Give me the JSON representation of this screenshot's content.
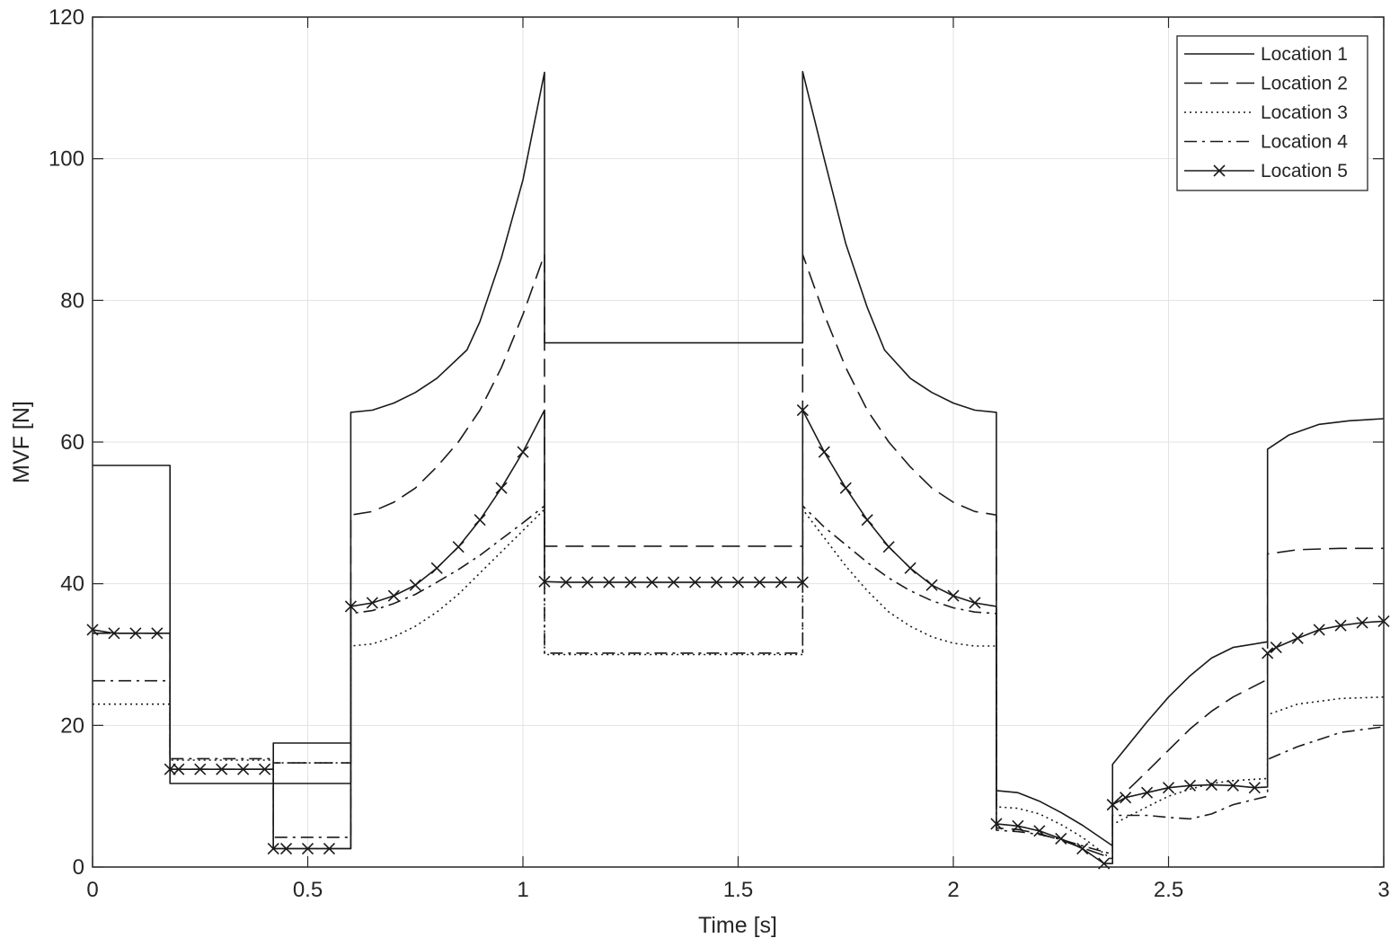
{
  "chart_data": {
    "type": "line",
    "title": "",
    "xlabel": "Time [s]",
    "ylabel": "MVF [N]",
    "xlim": [
      0,
      3
    ],
    "ylim": [
      0,
      120
    ],
    "xticks": [
      0,
      0.5,
      1,
      1.5,
      2,
      2.5,
      3
    ],
    "xtick_labels": [
      "0",
      "0.5",
      "1",
      "1.5",
      "2",
      "2.5",
      "3"
    ],
    "yticks": [
      0,
      20,
      40,
      60,
      80,
      100,
      120
    ],
    "ytick_labels": [
      "0",
      "20",
      "40",
      "60",
      "80",
      "100",
      "120"
    ],
    "grid": true,
    "legend_position": "top-right",
    "series": [
      {
        "name": "Location 1",
        "style": "solid",
        "marker": "none",
        "points": [
          [
            0,
            56.7
          ],
          [
            0.18,
            56.7
          ],
          [
            0.18,
            11.8
          ],
          [
            0.42,
            11.8
          ],
          [
            0.42,
            17.5
          ],
          [
            0.6,
            17.5
          ],
          [
            0.6,
            2.6
          ],
          [
            0.42,
            2.6
          ],
          [
            0.42,
            11.8
          ],
          [
            0.6,
            11.8
          ],
          [
            0.6,
            64.2
          ],
          [
            0.65,
            64.5
          ],
          [
            0.7,
            65.5
          ],
          [
            0.75,
            67
          ],
          [
            0.8,
            69
          ],
          [
            0.87,
            73
          ],
          [
            0.9,
            77
          ],
          [
            0.95,
            86
          ],
          [
            1.0,
            97
          ],
          [
            1.05,
            112.2
          ],
          [
            1.05,
            74
          ],
          [
            1.65,
            74
          ],
          [
            1.65,
            112.3
          ],
          [
            1.7,
            100
          ],
          [
            1.75,
            88
          ],
          [
            1.8,
            79
          ],
          [
            1.84,
            73
          ],
          [
            1.9,
            69
          ],
          [
            1.95,
            67
          ],
          [
            2.0,
            65.5
          ],
          [
            2.05,
            64.5
          ],
          [
            2.1,
            64.2
          ],
          [
            2.1,
            10.8
          ],
          [
            2.15,
            10.5
          ],
          [
            2.2,
            9.3
          ],
          [
            2.25,
            7.7
          ],
          [
            2.3,
            5.9
          ],
          [
            2.37,
            3.0
          ],
          [
            2.37,
            14.5
          ],
          [
            2.45,
            20.5
          ],
          [
            2.5,
            24
          ],
          [
            2.55,
            27
          ],
          [
            2.6,
            29.5
          ],
          [
            2.65,
            31
          ],
          [
            2.73,
            31.8
          ],
          [
            2.73,
            59
          ],
          [
            2.78,
            61
          ],
          [
            2.85,
            62.5
          ],
          [
            2.92,
            63
          ],
          [
            3.0,
            63.3
          ]
        ]
      },
      {
        "name": "Location 2",
        "style": "dashed",
        "marker": "none",
        "points": [
          [
            0,
            33
          ],
          [
            0.18,
            33
          ],
          [
            0.18,
            13.8
          ],
          [
            0.42,
            13.8
          ],
          [
            0.42,
            14.7
          ],
          [
            0.6,
            14.7
          ],
          [
            0.6,
            49.7
          ],
          [
            0.65,
            50.2
          ],
          [
            0.7,
            51.5
          ],
          [
            0.75,
            53.5
          ],
          [
            0.8,
            56.5
          ],
          [
            0.85,
            60
          ],
          [
            0.9,
            64.5
          ],
          [
            0.95,
            70.5
          ],
          [
            1.0,
            78
          ],
          [
            1.05,
            86.5
          ],
          [
            1.05,
            45.3
          ],
          [
            1.65,
            45.3
          ],
          [
            1.65,
            86.5
          ],
          [
            1.7,
            78
          ],
          [
            1.75,
            70.5
          ],
          [
            1.8,
            64.5
          ],
          [
            1.85,
            60
          ],
          [
            1.9,
            56.5
          ],
          [
            1.95,
            53.5
          ],
          [
            2.0,
            51.5
          ],
          [
            2.05,
            50.2
          ],
          [
            2.1,
            49.7
          ],
          [
            2.1,
            5.5
          ],
          [
            2.15,
            5.3
          ],
          [
            2.2,
            4.7
          ],
          [
            2.25,
            3.8
          ],
          [
            2.3,
            2.7
          ],
          [
            2.37,
            1.2
          ],
          [
            2.37,
            8.8
          ],
          [
            2.45,
            13.5
          ],
          [
            2.5,
            16.5
          ],
          [
            2.55,
            19.5
          ],
          [
            2.6,
            22
          ],
          [
            2.65,
            24
          ],
          [
            2.73,
            26.5
          ],
          [
            2.73,
            44.2
          ],
          [
            2.8,
            44.8
          ],
          [
            2.9,
            45
          ],
          [
            3.0,
            45
          ]
        ]
      },
      {
        "name": "Location 3",
        "style": "dotted",
        "marker": "none",
        "points": [
          [
            0,
            23
          ],
          [
            0.18,
            23
          ],
          [
            0.18,
            15.1
          ],
          [
            0.42,
            15.1
          ],
          [
            0.42,
            14.7
          ],
          [
            0.6,
            14.7
          ],
          [
            0.6,
            31.2
          ],
          [
            0.65,
            31.5
          ],
          [
            0.7,
            32.5
          ],
          [
            0.75,
            34
          ],
          [
            0.8,
            36
          ],
          [
            0.85,
            38.5
          ],
          [
            0.9,
            41.5
          ],
          [
            0.95,
            44.5
          ],
          [
            1.0,
            47.5
          ],
          [
            1.05,
            50.5
          ],
          [
            1.05,
            30
          ],
          [
            1.65,
            30
          ],
          [
            1.65,
            50.5
          ],
          [
            1.7,
            46.5
          ],
          [
            1.75,
            42.5
          ],
          [
            1.8,
            39
          ],
          [
            1.85,
            36
          ],
          [
            1.9,
            34
          ],
          [
            1.95,
            32.5
          ],
          [
            2.0,
            31.6
          ],
          [
            2.05,
            31.2
          ],
          [
            2.1,
            31.2
          ],
          [
            2.1,
            8.5
          ],
          [
            2.15,
            8.3
          ],
          [
            2.2,
            7.5
          ],
          [
            2.25,
            6.0
          ],
          [
            2.3,
            4.2
          ],
          [
            2.37,
            1.0
          ],
          [
            2.37,
            6.0
          ],
          [
            2.45,
            8.5
          ],
          [
            2.5,
            10.0
          ],
          [
            2.55,
            11.0
          ],
          [
            2.6,
            11.8
          ],
          [
            2.65,
            12.2
          ],
          [
            2.73,
            12.5
          ],
          [
            2.73,
            21.5
          ],
          [
            2.8,
            23.0
          ],
          [
            2.9,
            23.8
          ],
          [
            3.0,
            24
          ]
        ]
      },
      {
        "name": "Location 4",
        "style": "dashdot",
        "marker": "none",
        "points": [
          [
            0,
            26.3
          ],
          [
            0.18,
            26.3
          ],
          [
            0.18,
            15.3
          ],
          [
            0.42,
            15.3
          ],
          [
            0.42,
            4.2
          ],
          [
            0.6,
            4.2
          ],
          [
            0.6,
            35.8
          ],
          [
            0.65,
            36.2
          ],
          [
            0.7,
            37.2
          ],
          [
            0.75,
            38.5
          ],
          [
            0.8,
            40.2
          ],
          [
            0.85,
            42
          ],
          [
            0.9,
            44
          ],
          [
            0.95,
            46.3
          ],
          [
            1.0,
            48.6
          ],
          [
            1.05,
            51
          ],
          [
            1.05,
            30.2
          ],
          [
            1.65,
            30.2
          ],
          [
            1.65,
            51
          ],
          [
            1.7,
            48
          ],
          [
            1.75,
            45.5
          ],
          [
            1.8,
            43
          ],
          [
            1.85,
            40.8
          ],
          [
            1.9,
            39
          ],
          [
            1.95,
            37.6
          ],
          [
            2.0,
            36.6
          ],
          [
            2.05,
            36
          ],
          [
            2.1,
            35.8
          ],
          [
            2.1,
            5.2
          ],
          [
            2.15,
            5.0
          ],
          [
            2.2,
            4.6
          ],
          [
            2.25,
            3.9
          ],
          [
            2.3,
            3.0
          ],
          [
            2.37,
            1.8
          ],
          [
            2.37,
            7.3
          ],
          [
            2.45,
            7.3
          ],
          [
            2.5,
            7.0
          ],
          [
            2.55,
            6.8
          ],
          [
            2.6,
            7.5
          ],
          [
            2.65,
            8.8
          ],
          [
            2.73,
            10.0
          ],
          [
            2.73,
            15.2
          ],
          [
            2.8,
            17.0
          ],
          [
            2.9,
            19.0
          ],
          [
            3.0,
            19.8
          ]
        ]
      },
      {
        "name": "Location 5",
        "style": "solid",
        "marker": "x",
        "points": [
          [
            0,
            33.5
          ],
          [
            0.05,
            33
          ],
          [
            0.1,
            33
          ],
          [
            0.15,
            33
          ],
          [
            0.18,
            33
          ],
          [
            0.18,
            13.8
          ],
          [
            0.2,
            13.8
          ],
          [
            0.25,
            13.8
          ],
          [
            0.3,
            13.8
          ],
          [
            0.35,
            13.8
          ],
          [
            0.4,
            13.8
          ],
          [
            0.42,
            13.8
          ],
          [
            0.42,
            2.6
          ],
          [
            0.45,
            2.6
          ],
          [
            0.5,
            2.6
          ],
          [
            0.55,
            2.6
          ],
          [
            0.6,
            2.6
          ],
          [
            0.6,
            36.8
          ],
          [
            0.65,
            37.3
          ],
          [
            0.7,
            38.3
          ],
          [
            0.75,
            39.8
          ],
          [
            0.8,
            42.2
          ],
          [
            0.85,
            45.2
          ],
          [
            0.9,
            49
          ],
          [
            0.95,
            53.5
          ],
          [
            1.0,
            58.6
          ],
          [
            1.05,
            64.5
          ],
          [
            1.05,
            40.3
          ],
          [
            1.1,
            40.2
          ],
          [
            1.15,
            40.2
          ],
          [
            1.2,
            40.2
          ],
          [
            1.25,
            40.2
          ],
          [
            1.3,
            40.2
          ],
          [
            1.35,
            40.2
          ],
          [
            1.4,
            40.2
          ],
          [
            1.45,
            40.2
          ],
          [
            1.5,
            40.2
          ],
          [
            1.55,
            40.2
          ],
          [
            1.6,
            40.2
          ],
          [
            1.65,
            40.2
          ],
          [
            1.65,
            64.5
          ],
          [
            1.7,
            58.6
          ],
          [
            1.75,
            53.5
          ],
          [
            1.8,
            49
          ],
          [
            1.85,
            45.2
          ],
          [
            1.9,
            42.2
          ],
          [
            1.95,
            39.8
          ],
          [
            2.0,
            38.3
          ],
          [
            2.05,
            37.3
          ],
          [
            2.1,
            36.8
          ],
          [
            2.1,
            6.1
          ],
          [
            2.15,
            5.8
          ],
          [
            2.2,
            5.1
          ],
          [
            2.25,
            4.0
          ],
          [
            2.3,
            2.6
          ],
          [
            2.35,
            0.5
          ],
          [
            2.37,
            0.5
          ],
          [
            2.37,
            8.8
          ],
          [
            2.4,
            9.8
          ],
          [
            2.45,
            10.5
          ],
          [
            2.5,
            11.2
          ],
          [
            2.55,
            11.5
          ],
          [
            2.6,
            11.6
          ],
          [
            2.65,
            11.5
          ],
          [
            2.7,
            11.2
          ],
          [
            2.73,
            11.3
          ],
          [
            2.73,
            30.2
          ],
          [
            2.75,
            31
          ],
          [
            2.8,
            32.3
          ],
          [
            2.85,
            33.5
          ],
          [
            2.9,
            34.1
          ],
          [
            2.95,
            34.5
          ],
          [
            3.0,
            34.7
          ]
        ]
      }
    ]
  }
}
